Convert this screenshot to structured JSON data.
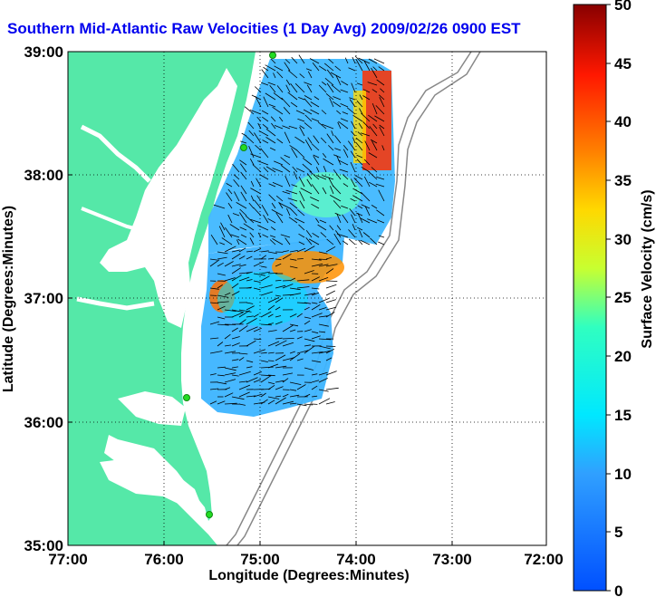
{
  "title": "Southern Mid-Atlantic Raw Velocities (1 Day Avg) 2009/02/26 0900 EST",
  "map": {
    "xlabel": "Longitude (Degrees:Minutes)",
    "ylabel": "Latitude (Degrees:Minutes)",
    "x_ticks": [
      "77:00",
      "76:00",
      "75:00",
      "74:00",
      "73:00",
      "72:00"
    ],
    "y_ticks": [
      "39:00",
      "38:00",
      "37:00",
      "36:00",
      "35:00"
    ],
    "lon_range": [
      -77,
      -72
    ],
    "lat_range": [
      35,
      39
    ],
    "grid": "dotted",
    "land_color": "#55e8a8",
    "water_color": "#ffffff",
    "station_color": "#22dd22"
  },
  "colorbar": {
    "label": "Surface Velocity (cm/s)",
    "ticks": [
      "50",
      "45",
      "40",
      "35",
      "30",
      "25",
      "20",
      "15",
      "10",
      "5",
      "0"
    ],
    "min": 0,
    "max": 50,
    "colormap": "jet"
  }
}
